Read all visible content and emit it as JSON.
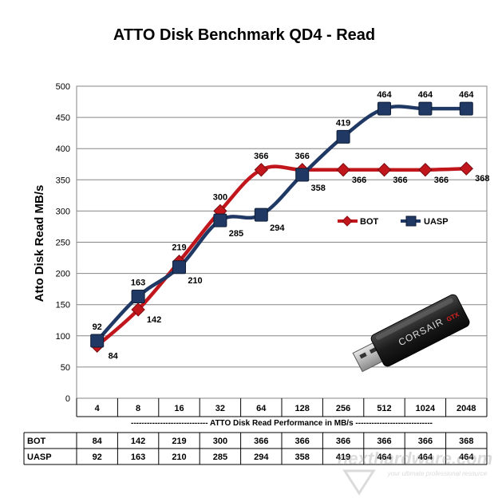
{
  "chart_data": {
    "type": "line",
    "title": "ATTO Disk Benchmark QD4 - Read",
    "ylabel": "Atto Disk Read MB/s",
    "xlabel": "----------------------------- ATTO Disk Read Performance in MB/s -----------------------------",
    "categories": [
      "4",
      "8",
      "16",
      "32",
      "64",
      "128",
      "256",
      "512",
      "1024",
      "2048"
    ],
    "ylim": [
      0,
      500
    ],
    "yticks": [
      0,
      50,
      100,
      150,
      200,
      250,
      300,
      350,
      400,
      450,
      500
    ],
    "grid": true,
    "legend_position": "right-middle",
    "series": [
      {
        "name": "BOT",
        "values": [
          84,
          142,
          219,
          300,
          366,
          366,
          366,
          366,
          366,
          368
        ],
        "color": "#c0161c",
        "marker": "diamond"
      },
      {
        "name": "UASP",
        "values": [
          92,
          163,
          210,
          285,
          294,
          358,
          419,
          464,
          464,
          464
        ],
        "color": "#1f3864",
        "marker": "square"
      }
    ],
    "table": {
      "rows": [
        {
          "label": "BOT",
          "values": [
            "84",
            "142",
            "219",
            "300",
            "366",
            "366",
            "366",
            "366",
            "366",
            "368"
          ]
        },
        {
          "label": "UASP",
          "values": [
            "92",
            "163",
            "210",
            "285",
            "294",
            "358",
            "419",
            "464",
            "464",
            "464"
          ]
        }
      ]
    }
  },
  "product_image": {
    "icon": "usb-flash-drive",
    "brand": "CORSAIR",
    "model": "GTX"
  },
  "watermark": {
    "text": "nexthardware.com",
    "tagline": "your ultimate professional resource"
  }
}
